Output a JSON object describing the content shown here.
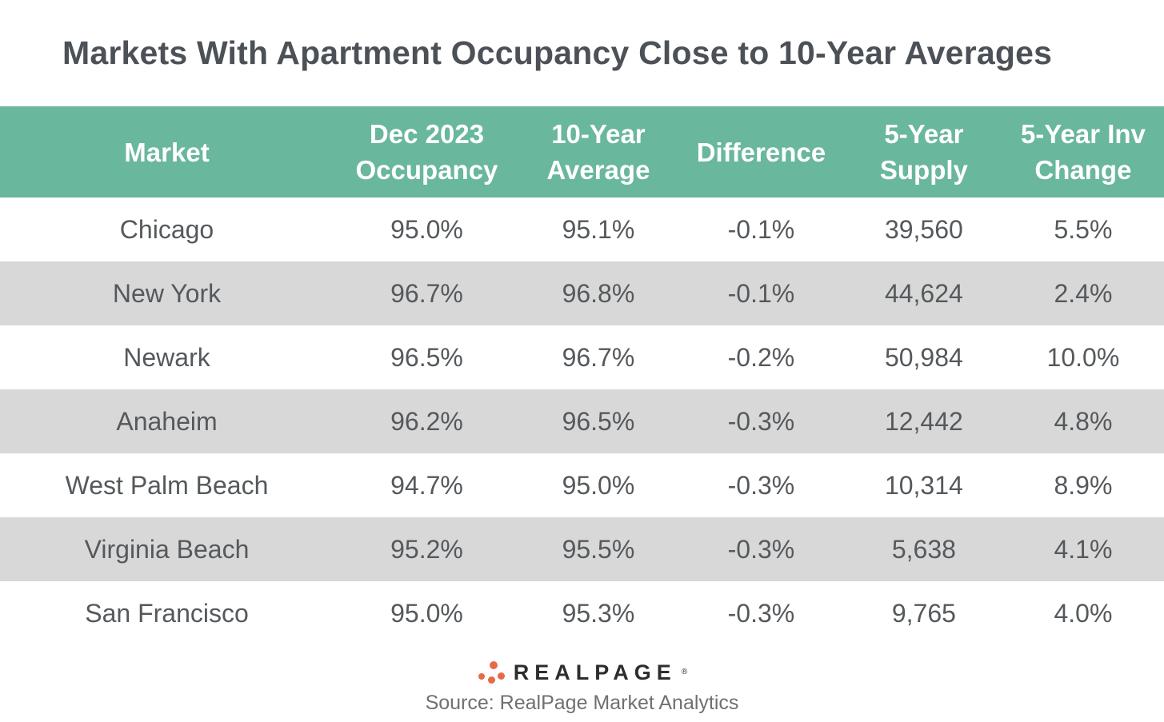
{
  "title": "Markets With Apartment Occupancy Close to 10-Year Averages",
  "colors": {
    "header_bg": "#69b79c",
    "row_alt_bg": "#d8d8d8",
    "body_text": "#55595c",
    "header_text": "#ffffff",
    "logo_dot": "#e8684a",
    "logo_text": "#2b2e31"
  },
  "header_lines": [
    {
      "l1": "Market",
      "l2": ""
    },
    {
      "l1": "Dec 2023",
      "l2": "Occupancy"
    },
    {
      "l1": "10-Year",
      "l2": "Average"
    },
    {
      "l1": "Difference",
      "l2": ""
    },
    {
      "l1": "5-Year",
      "l2": "Supply"
    },
    {
      "l1": "5-Year Inv",
      "l2": "Change"
    }
  ],
  "chart_data": {
    "type": "table",
    "title": "Markets With Apartment Occupancy Close to 10-Year Averages",
    "columns": [
      "Market",
      "Dec 2023 Occupancy",
      "10-Year Average",
      "Difference",
      "5-Year Supply",
      "5-Year Inv Change"
    ],
    "rows": [
      [
        "Chicago",
        "95.0%",
        "95.1%",
        "-0.1%",
        "39,560",
        "5.5%"
      ],
      [
        "New York",
        "96.7%",
        "96.8%",
        "-0.1%",
        "44,624",
        "2.4%"
      ],
      [
        "Newark",
        "96.5%",
        "96.7%",
        "-0.2%",
        "50,984",
        "10.0%"
      ],
      [
        "Anaheim",
        "96.2%",
        "96.5%",
        "-0.3%",
        "12,442",
        "4.8%"
      ],
      [
        "West Palm Beach",
        "94.7%",
        "95.0%",
        "-0.3%",
        "10,314",
        "8.9%"
      ],
      [
        "Virginia Beach",
        "95.2%",
        "95.5%",
        "-0.3%",
        "5,638",
        "4.1%"
      ],
      [
        "San Francisco",
        "95.0%",
        "95.3%",
        "-0.3%",
        "9,765",
        "4.0%"
      ]
    ],
    "legend": null,
    "grid": false,
    "notes": "Alternating white and light-gray striped rows; green header band"
  },
  "footer": {
    "logo_text": "REALPAGE",
    "trademark": "®",
    "source": "Source: RealPage Market Analytics"
  }
}
